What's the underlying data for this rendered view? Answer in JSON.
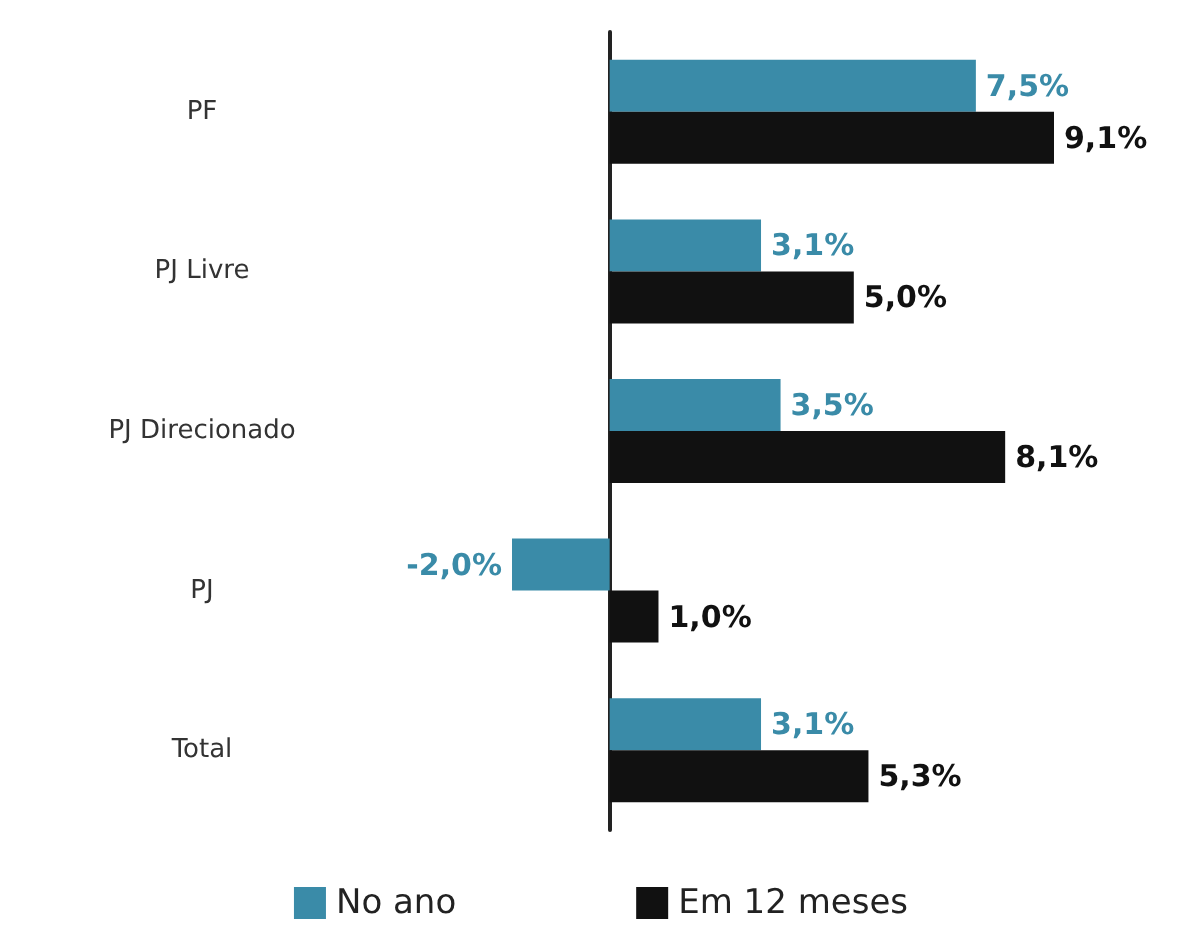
{
  "chart_data": {
    "type": "bar",
    "orientation": "horizontal",
    "categories": [
      "PF",
      "PJ Livre",
      "PJ Direcionado",
      "PJ",
      "Total"
    ],
    "series": [
      {
        "name": "No ano",
        "color": "#3a8ba8",
        "values": [
          7.5,
          3.1,
          3.5,
          -2.0,
          3.1
        ],
        "value_labels": [
          "7,5%",
          "3,1%",
          "3,5%",
          "-2,0%",
          "3,1%"
        ]
      },
      {
        "name": "Em 12 meses",
        "color": "#111111",
        "values": [
          9.1,
          5.0,
          8.1,
          1.0,
          5.3
        ],
        "value_labels": [
          "9,1%",
          "5,0%",
          "8,1%",
          "1,0%",
          "5,3%"
        ]
      }
    ],
    "legend": "bottom"
  }
}
